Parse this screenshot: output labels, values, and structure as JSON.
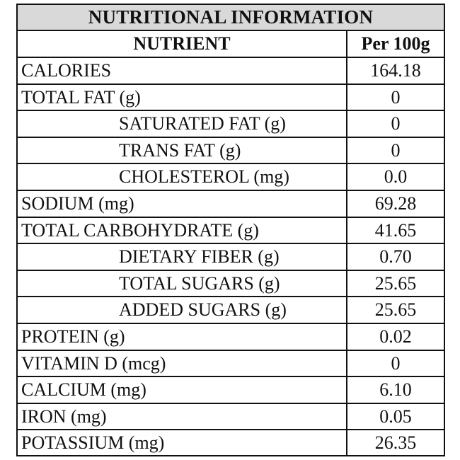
{
  "title": "NUTRITIONAL INFORMATION",
  "header": {
    "nutrient": "NUTRIENT",
    "per": "Per 100g"
  },
  "rows": [
    {
      "label": "CALORIES",
      "value": "164.18",
      "indent": 0
    },
    {
      "label": "TOTAL FAT (g)",
      "value": "0",
      "indent": 0
    },
    {
      "label": "SATURATED FAT (g)",
      "value": "0",
      "indent": 1
    },
    {
      "label": "TRANS FAT (g)",
      "value": "0",
      "indent": 1
    },
    {
      "label": "CHOLESTEROL (mg)",
      "value": "0.0",
      "indent": 1
    },
    {
      "label": "SODIUM (mg)",
      "value": "69.28",
      "indent": 0
    },
    {
      "label": "TOTAL CARBOHYDRATE (g)",
      "value": "41.65",
      "indent": 0
    },
    {
      "label": "DIETARY FIBER (g)",
      "value": "0.70",
      "indent": 1
    },
    {
      "label": "TOTAL SUGARS (g)",
      "value": "25.65",
      "indent": 1
    },
    {
      "label": "ADDED SUGARS (g)",
      "value": "25.65",
      "indent": 1
    },
    {
      "label": "PROTEIN (g)",
      "value": "0.02",
      "indent": 0
    },
    {
      "label": "VITAMIN D (mcg)",
      "value": "0",
      "indent": 0
    },
    {
      "label": "CALCIUM (mg)",
      "value": "6.10",
      "indent": 0
    },
    {
      "label": "IRON (mg)",
      "value": "0.05",
      "indent": 0
    },
    {
      "label": "POTASSIUM (mg)",
      "value": "26.35",
      "indent": 0
    }
  ]
}
